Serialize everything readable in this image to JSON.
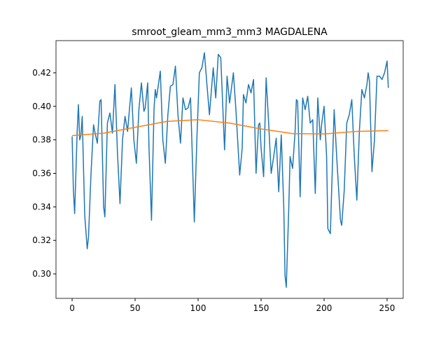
{
  "chart_data": {
    "type": "line",
    "title": "smroot_gleam_mm3_mm3 MAGDALENA",
    "series": [
      {
        "color": "#1f77b4",
        "x": [
          0,
          1,
          2,
          4,
          5,
          6,
          7,
          8,
          10,
          12,
          13,
          15,
          17,
          18,
          20,
          22,
          23,
          25,
          26,
          28,
          30,
          32,
          34,
          36,
          38,
          40,
          42,
          44,
          47,
          49,
          51,
          53,
          55,
          57,
          58,
          60,
          61,
          63,
          65,
          66,
          67,
          70,
          72,
          74,
          76,
          78,
          80,
          82,
          84,
          86,
          88,
          90,
          92,
          94,
          97,
          99,
          101,
          103,
          105,
          107,
          109,
          112,
          114,
          116,
          118,
          121,
          123,
          125,
          128,
          130,
          133,
          135,
          136,
          138,
          140,
          142,
          144,
          146,
          148,
          149,
          150,
          152,
          154,
          156,
          158,
          160,
          162,
          164,
          166,
          168,
          169,
          170,
          172,
          173,
          175,
          177,
          178,
          179,
          181,
          183,
          185,
          187,
          189,
          191,
          193,
          195,
          197,
          198,
          200,
          202,
          203,
          205,
          206,
          208,
          210,
          213,
          214,
          216,
          218,
          220,
          222,
          224,
          226,
          228,
          230,
          232,
          234,
          235,
          236,
          238,
          240,
          242,
          244,
          246,
          248,
          250,
          251
        ],
        "values": [
          0.382,
          0.35,
          0.336,
          0.385,
          0.401,
          0.38,
          0.383,
          0.394,
          0.335,
          0.315,
          0.322,
          0.36,
          0.389,
          0.385,
          0.378,
          0.403,
          0.404,
          0.34,
          0.334,
          0.39,
          0.396,
          0.384,
          0.413,
          0.372,
          0.342,
          0.38,
          0.394,
          0.385,
          0.411,
          0.38,
          0.366,
          0.398,
          0.414,
          0.397,
          0.399,
          0.414,
          0.376,
          0.332,
          0.398,
          0.41,
          0.405,
          0.421,
          0.38,
          0.366,
          0.395,
          0.412,
          0.413,
          0.424,
          0.395,
          0.378,
          0.405,
          0.398,
          0.399,
          0.405,
          0.331,
          0.38,
          0.42,
          0.423,
          0.432,
          0.413,
          0.395,
          0.423,
          0.405,
          0.431,
          0.429,
          0.374,
          0.418,
          0.402,
          0.42,
          0.398,
          0.359,
          0.375,
          0.407,
          0.402,
          0.413,
          0.408,
          0.416,
          0.36,
          0.389,
          0.39,
          0.375,
          0.358,
          0.417,
          0.39,
          0.36,
          0.37,
          0.381,
          0.349,
          0.383,
          0.34,
          0.299,
          0.292,
          0.34,
          0.37,
          0.363,
          0.385,
          0.404,
          0.403,
          0.346,
          0.405,
          0.398,
          0.406,
          0.39,
          0.392,
          0.348,
          0.405,
          0.38,
          0.389,
          0.4,
          0.37,
          0.327,
          0.324,
          0.35,
          0.398,
          0.37,
          0.332,
          0.329,
          0.35,
          0.39,
          0.395,
          0.404,
          0.37,
          0.344,
          0.385,
          0.41,
          0.405,
          0.413,
          0.42,
          0.415,
          0.361,
          0.38,
          0.418,
          0.418,
          0.416,
          0.42,
          0.427,
          0.411
        ]
      },
      {
        "color": "#ff7f0e",
        "x": [
          0,
          25,
          50,
          75,
          100,
          125,
          150,
          175,
          200,
          225,
          251
        ],
        "values": [
          0.3825,
          0.384,
          0.3875,
          0.391,
          0.392,
          0.39,
          0.3865,
          0.3837,
          0.3835,
          0.385,
          0.3855
        ]
      }
    ],
    "xlim": [
      -12.8,
      262.8
    ],
    "ylim": [
      0.2854,
      0.4392
    ],
    "xticks": [
      0,
      50,
      100,
      150,
      200,
      250
    ],
    "yticks": [
      {
        "value": 0.3,
        "label": "0.30"
      },
      {
        "value": 0.32,
        "label": "0.32"
      },
      {
        "value": 0.34,
        "label": "0.34"
      },
      {
        "value": 0.36,
        "label": "0.36"
      },
      {
        "value": 0.38,
        "label": "0.38"
      },
      {
        "value": 0.4,
        "label": "0.40"
      },
      {
        "value": 0.42,
        "label": "0.42"
      }
    ]
  }
}
